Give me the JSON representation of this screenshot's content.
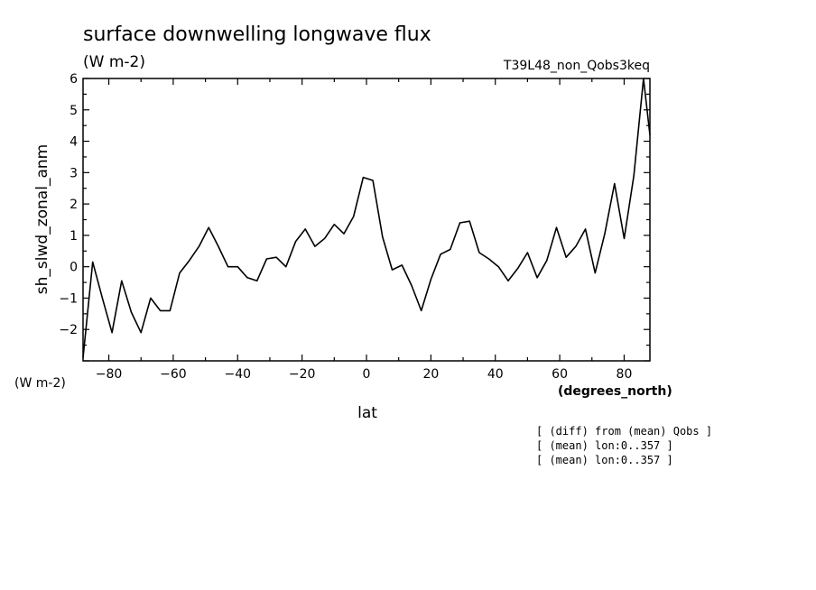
{
  "chart_data": {
    "type": "line",
    "title": "surface downwelling longwave flux",
    "units": "(W m-2)",
    "run_label": "T39L48_non_Qobs3keq",
    "xlabel": "lat",
    "x_units": "(degrees_north)",
    "ylabel": "sh_slwd_zonal_anm",
    "y_units": "(W m-2)",
    "xlim": [
      -88,
      88
    ],
    "ylim": [
      -3,
      6
    ],
    "x_ticks": [
      -80,
      -60,
      -40,
      -20,
      0,
      20,
      40,
      60,
      80
    ],
    "y_ticks": [
      -2,
      -1,
      0,
      1,
      2,
      3,
      4,
      5,
      6
    ],
    "grid": false,
    "notes": [
      "[ (diff) from (mean) Qobs ]",
      "[ (mean) lon:0..357 ]",
      "[ (mean) lon:0..357 ]"
    ],
    "series": [
      {
        "color": "#000000",
        "x": [
          -88,
          -85,
          -82,
          -79,
          -76,
          -73,
          -70,
          -67,
          -64,
          -61,
          -58,
          -55,
          -52,
          -49,
          -46,
          -43,
          -40,
          -37,
          -34,
          -31,
          -28,
          -25,
          -22,
          -19,
          -16,
          -13,
          -10,
          -7,
          -4,
          -1,
          2,
          5,
          8,
          11,
          14,
          17,
          20,
          23,
          26,
          29,
          32,
          35,
          38,
          41,
          44,
          47,
          50,
          53,
          56,
          59,
          62,
          65,
          68,
          71,
          74,
          77,
          80,
          83,
          86,
          88
        ],
        "y": [
          -2.9,
          0.15,
          -1.0,
          -2.1,
          -0.45,
          -1.45,
          -2.1,
          -1.0,
          -1.4,
          -1.4,
          -0.2,
          0.2,
          0.65,
          1.25,
          0.65,
          0.0,
          0.0,
          -0.35,
          -0.45,
          0.25,
          0.3,
          0.0,
          0.8,
          1.2,
          0.65,
          0.9,
          1.35,
          1.05,
          1.6,
          2.85,
          2.75,
          0.95,
          -0.1,
          0.05,
          -0.6,
          -1.4,
          -0.4,
          0.4,
          0.55,
          1.4,
          1.45,
          0.45,
          0.25,
          0.0,
          -0.45,
          -0.05,
          0.45,
          -0.35,
          0.2,
          1.25,
          0.3,
          0.65,
          1.2,
          -0.2,
          1.05,
          2.65,
          0.9,
          2.9,
          6.0,
          4.2
        ]
      }
    ]
  }
}
